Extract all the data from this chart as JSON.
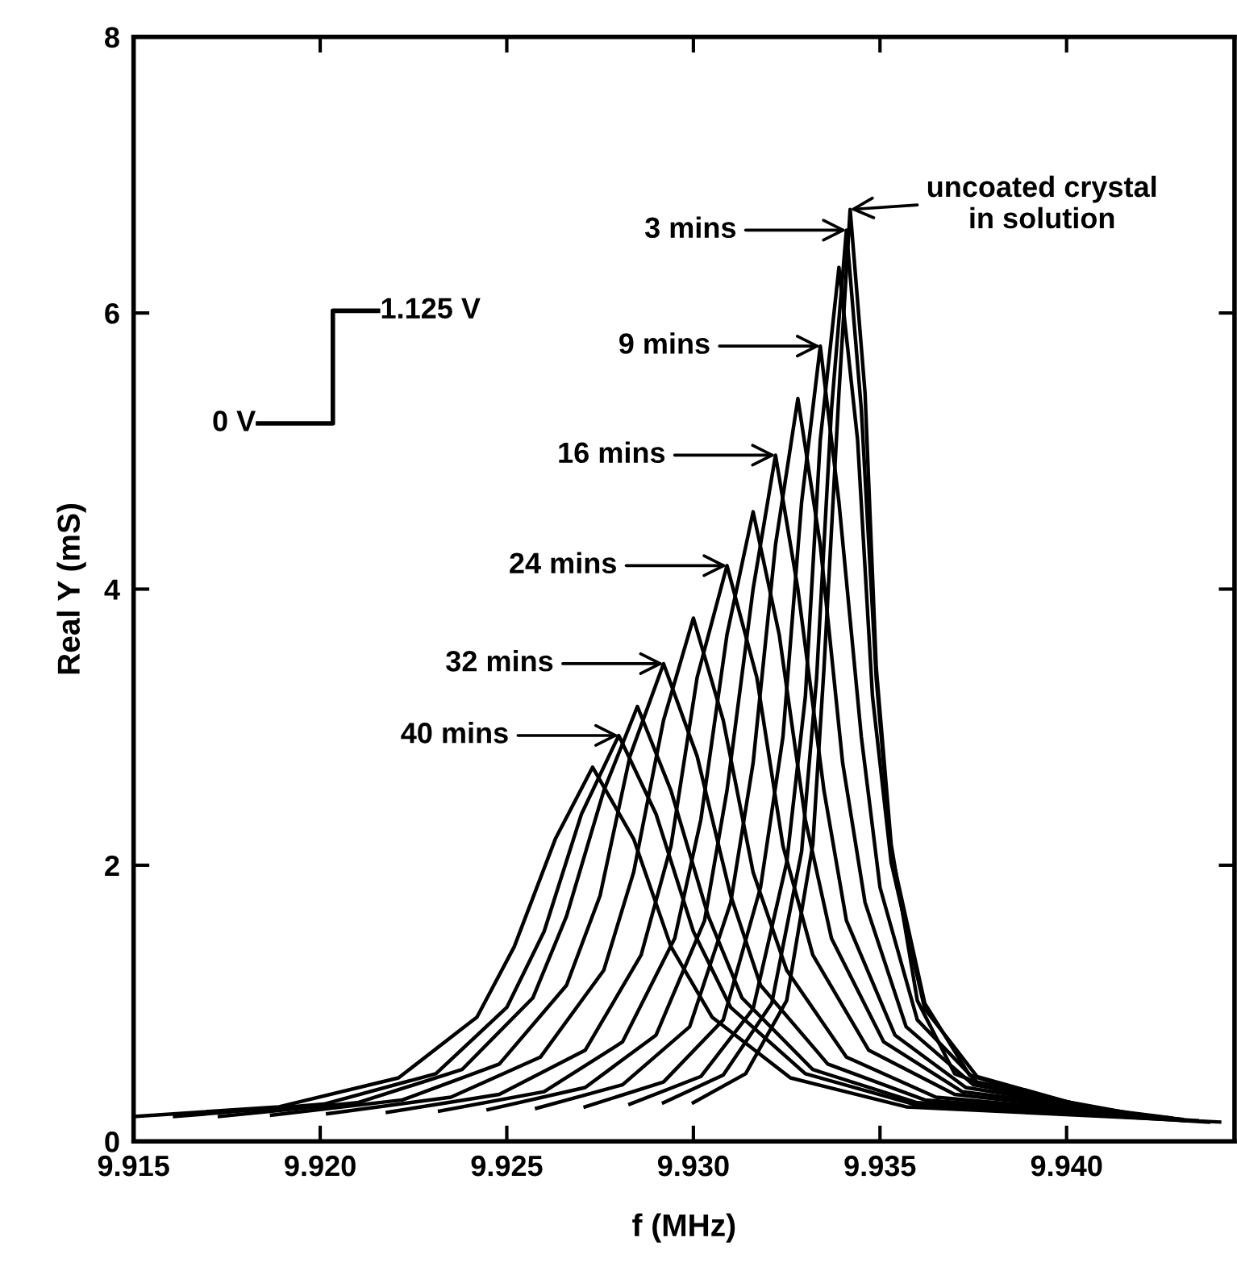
{
  "chart_data": {
    "type": "line",
    "xlabel": "f (MHz)",
    "ylabel": "Real Y (mS)",
    "xlim": [
      9.915,
      9.9445
    ],
    "ylim": [
      0,
      8
    ],
    "xticks": [
      9.915,
      {
        "value": 9.92,
        "label": "9.920"
      },
      9.925,
      {
        "value": 9.93,
        "label": "9.930"
      },
      9.935,
      {
        "value": 9.94,
        "label": "9.940"
      }
    ],
    "yticks": [
      0,
      2,
      4,
      6,
      8
    ],
    "grid": false,
    "legend": false,
    "marker": "none",
    "line_style": "solid",
    "series": [
      {
        "color": "#000000",
        "x": [
          9.93,
          9.9314,
          9.9325,
          9.9332,
          9.9335,
          9.9339,
          9.9342,
          9.9346,
          9.9349,
          9.9353,
          9.936,
          9.937,
          9.9398
        ],
        "values": [
          0.28,
          0.49,
          1.02,
          2.15,
          3.43,
          5.42,
          6.75,
          5.42,
          3.43,
          2.15,
          1.02,
          0.49,
          0.2
        ]
      },
      {
        "color": "#000000",
        "x": [
          9.9292,
          9.9308,
          9.9321,
          9.9329,
          9.9333,
          9.9337,
          9.9341,
          9.9345,
          9.9349,
          9.9353,
          9.9362,
          9.9374,
          9.9407
        ],
        "values": [
          0.28,
          0.48,
          1.0,
          2.1,
          3.35,
          5.3,
          6.6,
          5.3,
          3.35,
          2.1,
          1.0,
          0.48,
          0.2
        ]
      },
      {
        "color": "#000000",
        "x": [
          9.9283,
          9.9302,
          9.9316,
          9.9325,
          9.933,
          9.9334,
          9.9339,
          9.9344,
          9.9348,
          9.9353,
          9.9362,
          9.9376,
          9.9413
        ],
        "values": [
          0.27,
          0.47,
          0.96,
          2.02,
          3.22,
          5.08,
          6.33,
          5.08,
          3.22,
          2.02,
          0.96,
          0.47,
          0.19
        ]
      },
      {
        "color": "#000000",
        "x": [
          9.9271,
          9.9292,
          9.9308,
          9.9318,
          9.9324,
          9.9329,
          9.9334,
          9.9339,
          9.9345,
          9.935,
          9.936,
          9.9376,
          9.9418
        ],
        "values": [
          0.25,
          0.43,
          0.88,
          1.84,
          2.93,
          4.63,
          5.76,
          4.63,
          2.93,
          1.84,
          0.88,
          0.43,
          0.18
        ]
      },
      {
        "color": "#000000",
        "x": [
          9.9258,
          9.9281,
          9.9299,
          9.931,
          9.9316,
          9.9322,
          9.9328,
          9.9334,
          9.934,
          9.9346,
          9.9357,
          9.9375,
          9.9422
        ],
        "values": [
          0.24,
          0.41,
          0.83,
          1.73,
          2.74,
          4.32,
          5.38,
          4.32,
          2.74,
          1.73,
          0.83,
          0.41,
          0.18
        ]
      },
      {
        "color": "#000000",
        "x": [
          9.9245,
          9.9271,
          9.929,
          9.9303,
          9.9309,
          9.9316,
          9.9322,
          9.9328,
          9.9335,
          9.9341,
          9.9354,
          9.9373,
          9.9424
        ],
        "values": [
          0.23,
          0.39,
          0.77,
          1.6,
          2.54,
          4.0,
          4.97,
          4.0,
          2.54,
          1.6,
          0.77,
          0.39,
          0.17
        ]
      },
      {
        "color": "#000000",
        "x": [
          9.9232,
          9.926,
          9.9281,
          9.9295,
          9.9302,
          9.9309,
          9.9316,
          9.9323,
          9.933,
          9.9337,
          9.9351,
          9.9372,
          9.9428
        ],
        "values": [
          0.22,
          0.36,
          0.72,
          1.47,
          2.33,
          3.67,
          4.56,
          3.67,
          2.33,
          1.47,
          0.72,
          0.36,
          0.17
        ]
      },
      {
        "color": "#000000",
        "x": [
          9.9218,
          9.9248,
          9.9271,
          9.9286,
          9.9294,
          9.9301,
          9.9309,
          9.9317,
          9.9324,
          9.9332,
          9.9347,
          9.937,
          9.9431
        ],
        "values": [
          0.21,
          0.34,
          0.66,
          1.35,
          2.14,
          3.36,
          4.17,
          3.36,
          2.14,
          1.35,
          0.66,
          0.34,
          0.16
        ]
      },
      {
        "color": "#000000",
        "x": [
          9.9202,
          9.9235,
          9.9259,
          9.9276,
          9.9284,
          9.9292,
          9.93,
          9.9308,
          9.9316,
          9.9325,
          9.9341,
          9.9365,
          9.943
        ],
        "values": [
          0.2,
          0.32,
          0.61,
          1.24,
          1.95,
          3.05,
          3.79,
          3.05,
          1.95,
          1.24,
          0.61,
          0.32,
          0.16
        ]
      },
      {
        "color": "#000000",
        "x": [
          9.9187,
          9.9222,
          9.9248,
          9.9266,
          9.9275,
          9.9283,
          9.9292,
          9.9301,
          9.931,
          9.9318,
          9.9336,
          9.9362,
          9.9432
        ],
        "values": [
          0.19,
          0.3,
          0.56,
          1.13,
          1.78,
          2.79,
          3.46,
          2.79,
          1.78,
          1.13,
          0.56,
          0.3,
          0.15
        ]
      },
      {
        "color": "#000000",
        "x": [
          9.9173,
          9.921,
          9.9238,
          9.9257,
          9.9266,
          9.9276,
          9.9285,
          9.9294,
          9.9304,
          9.9313,
          9.9332,
          9.936,
          9.9435
        ],
        "values": [
          0.18,
          0.28,
          0.52,
          1.04,
          1.63,
          2.54,
          3.15,
          2.54,
          1.63,
          1.04,
          0.52,
          0.28,
          0.15
        ]
      },
      {
        "color": "#000000",
        "x": [
          9.9161,
          9.9201,
          9.9231,
          9.925,
          9.926,
          9.927,
          9.928,
          9.929,
          9.93,
          9.931,
          9.933,
          9.9359,
          9.9438
        ],
        "values": [
          0.18,
          0.27,
          0.49,
          0.97,
          1.52,
          2.37,
          2.94,
          2.37,
          1.52,
          0.97,
          0.49,
          0.27,
          0.14
        ]
      },
      {
        "color": "#000000",
        "x": [
          9.915,
          9.9189,
          9.9221,
          9.9242,
          9.9252,
          9.9263,
          9.9273,
          9.9284,
          9.9294,
          9.9305,
          9.9326,
          9.9357,
          9.9441
        ],
        "values": [
          0.18,
          0.25,
          0.46,
          0.9,
          1.41,
          2.19,
          2.71,
          2.19,
          1.41,
          0.9,
          0.46,
          0.25,
          0.14
        ]
      }
    ],
    "annotations": [
      "uncoated crystal\nin solution",
      "3 mins",
      "9 mins",
      "16 mins",
      "24 mins",
      "32 mins",
      "40 mins",
      "0 V",
      "1.125 V"
    ]
  }
}
